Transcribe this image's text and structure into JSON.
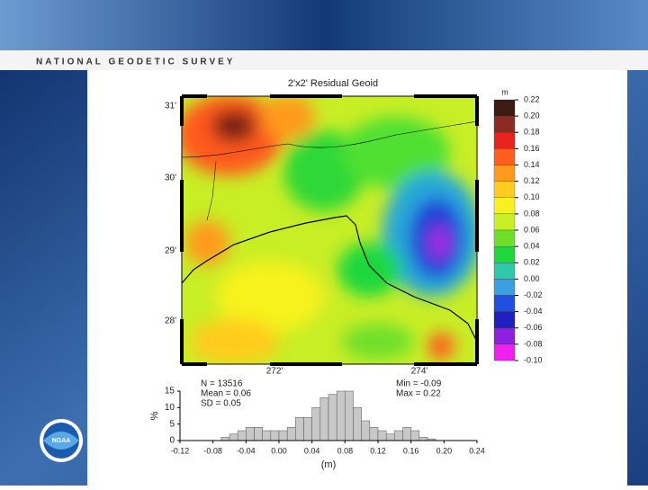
{
  "header": {
    "title": "NATIONAL GEODETIC SURVEY"
  },
  "map": {
    "title": "2'x2' Residual Geoid",
    "lat_labels": [
      "31'",
      "30'",
      "29'",
      "28'"
    ],
    "lon_labels": [
      "272'",
      "274'"
    ],
    "colorbar": {
      "unit": "m",
      "ticks": [
        0.22,
        {
          "value": 0.2,
          "label": "0.20"
        },
        0.18,
        0.16,
        0.14,
        0.12,
        {
          "value": 0.1,
          "label": "0.10"
        },
        0.08,
        0.06,
        0.04,
        0.02,
        {
          "value": 0,
          "label": "0.00"
        },
        -0.02,
        -0.04,
        -0.06,
        -0.08,
        {
          "value": -0.1,
          "label": "-0.10"
        }
      ],
      "colors": [
        "#3b1b12",
        "#8a2c22",
        "#e8231d",
        "#ff5e1f",
        "#ff9a1f",
        "#ffcc1f",
        "#f7f21f",
        "#c9f024",
        "#6fe02a",
        "#1ed83c",
        "#2fc8a8",
        "#3aa0e0",
        "#2050e0",
        "#2020c0",
        "#9020e0",
        "#f020f0"
      ]
    }
  },
  "stats": {
    "n": "N = 13516",
    "mean": "Mean = 0.06",
    "sd": "SD = 0.05",
    "min": "Min = -0.09",
    "max": "Max = 0.22"
  },
  "chart_data": {
    "type": "histogram",
    "x_label": "(m)",
    "y_label": "%",
    "color": "#c8c8c8",
    "bins": [
      -0.07,
      -0.06,
      -0.05,
      -0.04,
      -0.03,
      -0.02,
      -0.01,
      0,
      0.01,
      0.02,
      0.03,
      0.04,
      0.05,
      0.06,
      0.07,
      0.08,
      0.09,
      0.1,
      0.11,
      0.12,
      0.13,
      0.14,
      0.15,
      0.16,
      0.17,
      0.18,
      0.19
    ],
    "values": [
      1,
      2,
      3,
      4,
      4,
      3,
      3,
      3,
      4,
      7,
      7,
      10,
      13,
      14,
      15,
      15,
      10,
      6,
      4,
      3,
      2,
      3,
      4,
      3,
      1,
      0.5
    ],
    "xlim": [
      -0.12,
      0.24
    ],
    "xticks": [
      -0.12,
      -0.08,
      -0.04,
      {
        "value": 0,
        "label": "0.00"
      },
      0.04,
      0.08,
      0.12,
      0.16,
      {
        "value": 0.2,
        "label": "0.20"
      },
      0.24
    ],
    "ylim": [
      0,
      15
    ],
    "yticks": [
      0,
      5,
      10,
      15
    ]
  }
}
